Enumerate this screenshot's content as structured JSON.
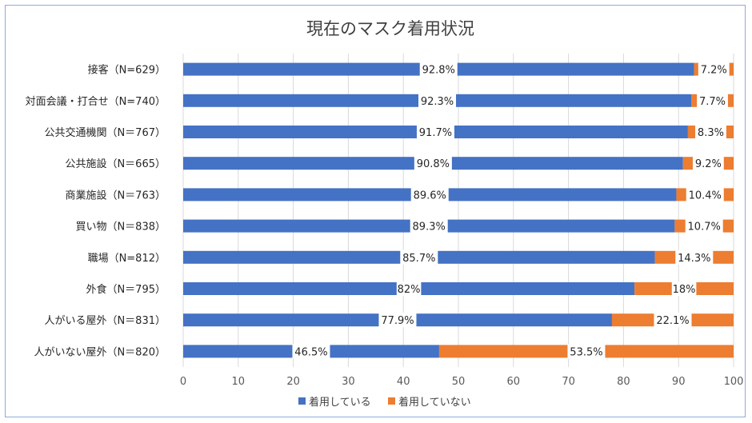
{
  "chart_data": {
    "type": "bar",
    "orientation": "horizontal",
    "stacked": true,
    "title": "現在のマスク着用状況",
    "xlabel": "",
    "ylabel": "",
    "xlim": [
      0,
      100
    ],
    "xticks": [
      0,
      10,
      20,
      30,
      40,
      50,
      60,
      70,
      80,
      90,
      100
    ],
    "grid": true,
    "legend_position": "bottom",
    "categories": [
      "接客（N=629）",
      "対面会議・打合せ（N=740）",
      "公共交通機関（N＝767）",
      "公共施設（N＝665）",
      "商業施設（N＝763）",
      "買い物（N＝838）",
      "職場（N=812）",
      "外食（N＝795）",
      "人がいる屋外（N＝831）",
      "人がいない屋外（N＝820）"
    ],
    "series": [
      {
        "name": "着用している",
        "color": "#4472c4",
        "values": [
          92.8,
          92.3,
          91.7,
          90.8,
          89.6,
          89.3,
          85.7,
          82,
          77.9,
          46.5
        ],
        "labels": [
          "92.8%",
          "92.3%",
          "91.7%",
          "90.8%",
          "89.6%",
          "89.3%",
          "85.7%",
          "82%",
          "77.9%",
          "46.5%"
        ]
      },
      {
        "name": "着用していない",
        "color": "#ed7d31",
        "values": [
          7.2,
          7.7,
          8.3,
          9.2,
          10.4,
          10.7,
          14.3,
          18,
          22.1,
          53.5
        ],
        "labels": [
          "7.2%",
          "7.7%",
          "8.3%",
          "9.2%",
          "10.4%",
          "10.7%",
          "14.3%",
          "18%",
          "22.1%",
          "53.5%"
        ]
      }
    ]
  }
}
